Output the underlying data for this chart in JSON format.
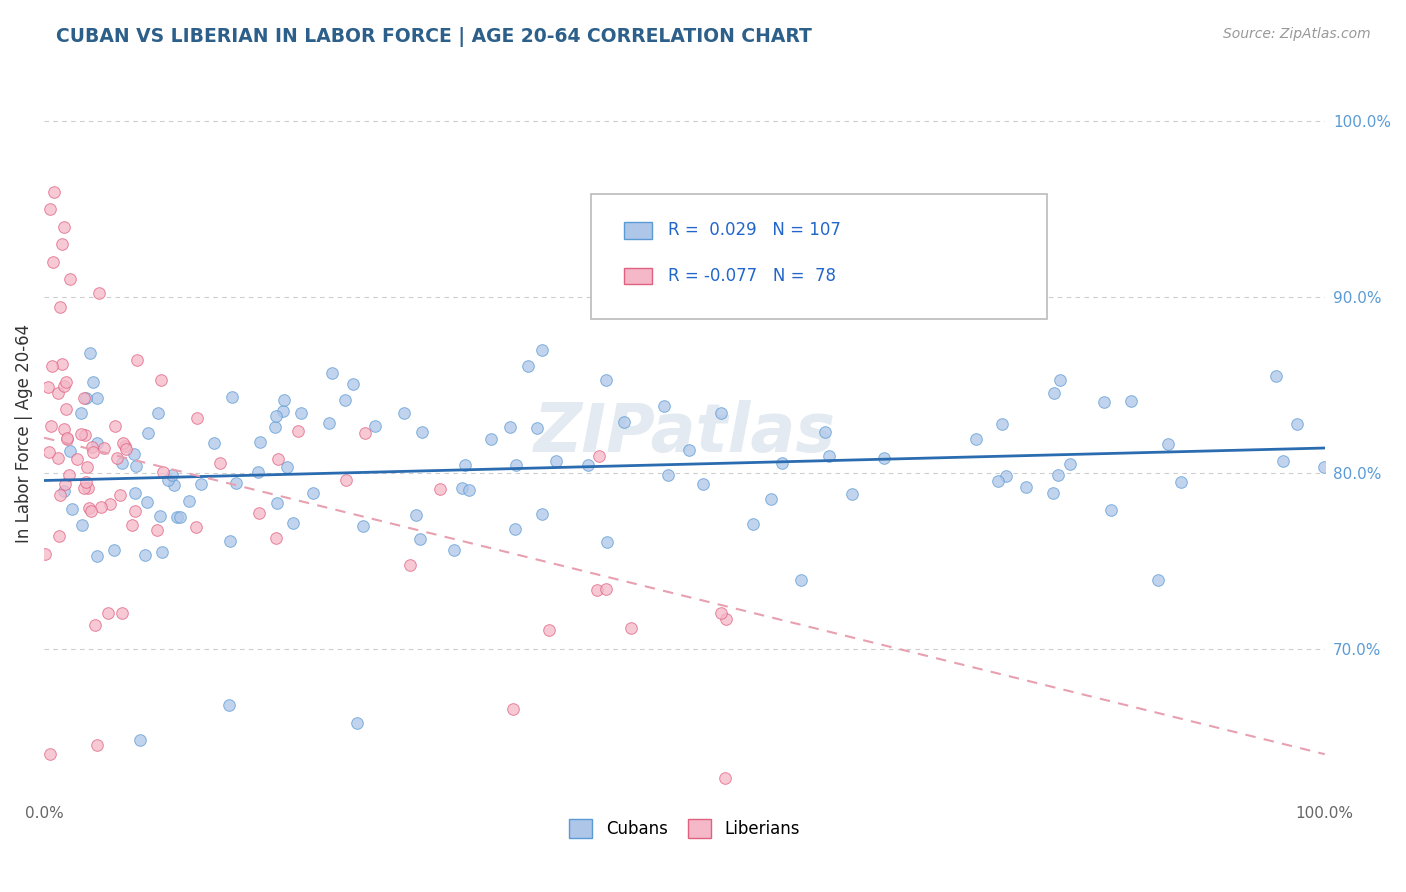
{
  "title": "CUBAN VS LIBERIAN IN LABOR FORCE | AGE 20-64 CORRELATION CHART",
  "source": "Source: ZipAtlas.com",
  "ylabel": "In Labor Force | Age 20-64",
  "xlim": [
    0.0,
    1.0
  ],
  "ylim": [
    0.615,
    1.03
  ],
  "x_tick_labels": [
    "0.0%",
    "",
    "",
    "",
    "",
    "100.0%"
  ],
  "x_ticks": [
    0.0,
    0.2,
    0.4,
    0.6,
    0.8,
    1.0
  ],
  "y_ticks_right": [
    0.7,
    0.8,
    0.9,
    1.0
  ],
  "y_tick_labels_right": [
    "70.0%",
    "80.0%",
    "90.0%",
    "100.0%"
  ],
  "cuban_fill": "#aec6e8",
  "cuban_edge": "#5b9bd5",
  "liberian_fill": "#f4b8c8",
  "liberian_edge": "#e06080",
  "cuban_line_color": "#2b6cb0",
  "liberian_line_color": "#e8a0b0",
  "grid_color": "#cccccc",
  "title_color": "#2c5f8a",
  "legend_text_color": "#2266cc",
  "watermark": "ZIPatlas",
  "R_cuban": 0.029,
  "N_cuban": 107,
  "R_liberian": -0.077,
  "N_liberian": 78
}
